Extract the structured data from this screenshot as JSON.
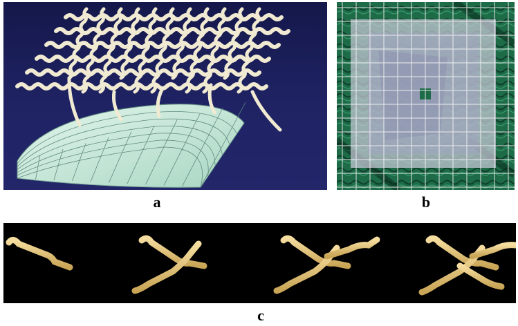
{
  "figure": {
    "labels": {
      "a": "a",
      "b": "b",
      "c": "c"
    },
    "colors": {
      "panel_a_background": "#1f2364",
      "surface": "#cfeee0",
      "yarn_cream": "#f1ead2",
      "panel_b_background": "#1f6f4a",
      "panel_b_overlay": "#c9c9d8",
      "panel_c_background": "#000000",
      "yarn_gold": "#e8c97a"
    },
    "panel_c_steps": 4
  }
}
